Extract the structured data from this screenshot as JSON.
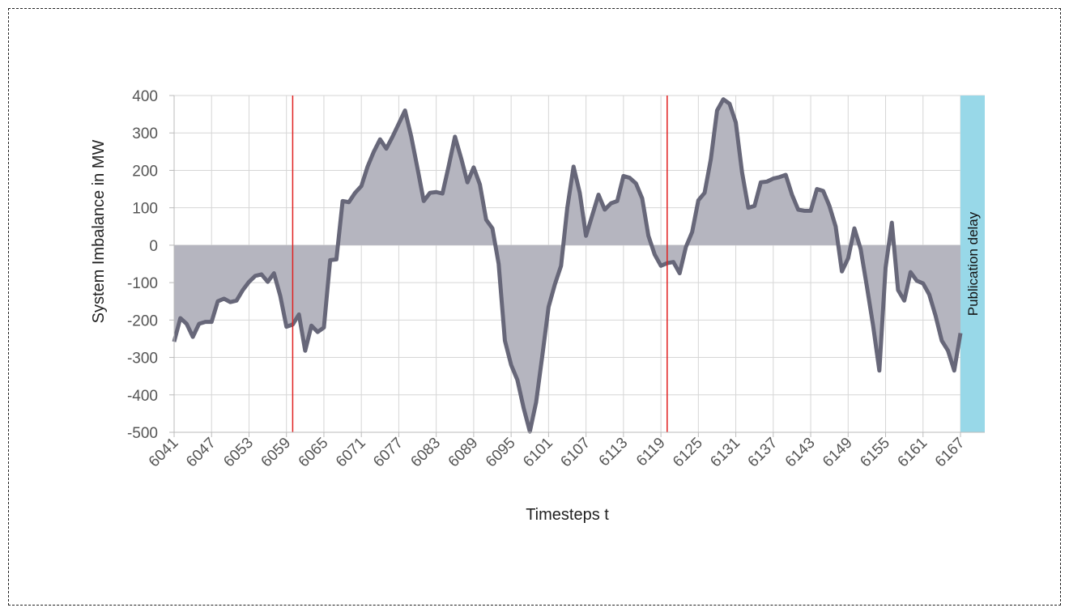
{
  "chart_data": {
    "type": "area",
    "xlabel": "Timesteps t",
    "ylabel": "System Imbalance in MW",
    "xlim": [
      6041,
      6167
    ],
    "ylim": [
      -500,
      400
    ],
    "yticks": [
      400,
      300,
      200,
      100,
      0,
      -100,
      -200,
      -300,
      -400,
      -500
    ],
    "xticks": [
      6041,
      6047,
      6053,
      6059,
      6065,
      6071,
      6077,
      6083,
      6089,
      6095,
      6101,
      6107,
      6113,
      6119,
      6125,
      6131,
      6137,
      6143,
      6149,
      6155,
      6161,
      6167
    ],
    "grid": true,
    "vlines": [
      6060,
      6120
    ],
    "band": {
      "label": "Publication delay",
      "x_start": 6167,
      "color": "#98d8e8"
    },
    "line_color": "#676779",
    "fill_color": "#b5b5bf",
    "vline_color": "#e02020",
    "x": [
      6041,
      6042,
      6043,
      6044,
      6045,
      6046,
      6047,
      6048,
      6049,
      6050,
      6051,
      6052,
      6053,
      6054,
      6055,
      6056,
      6057,
      6058,
      6059,
      6060,
      6061,
      6062,
      6063,
      6064,
      6065,
      6066,
      6067,
      6068,
      6069,
      6070,
      6071,
      6072,
      6073,
      6074,
      6075,
      6076,
      6077,
      6078,
      6079,
      6080,
      6081,
      6082,
      6083,
      6084,
      6085,
      6086,
      6087,
      6088,
      6089,
      6090,
      6091,
      6092,
      6093,
      6094,
      6095,
      6096,
      6097,
      6098,
      6099,
      6100,
      6101,
      6102,
      6103,
      6104,
      6105,
      6106,
      6107,
      6108,
      6109,
      6110,
      6111,
      6112,
      6113,
      6114,
      6115,
      6116,
      6117,
      6118,
      6119,
      6120,
      6121,
      6122,
      6123,
      6124,
      6125,
      6126,
      6127,
      6128,
      6129,
      6130,
      6131,
      6132,
      6133,
      6134,
      6135,
      6136,
      6137,
      6138,
      6139,
      6140,
      6141,
      6142,
      6143,
      6144,
      6145,
      6146,
      6147,
      6148,
      6149,
      6150,
      6151,
      6152,
      6153,
      6154,
      6155,
      6156,
      6157,
      6158,
      6159,
      6160,
      6161,
      6162,
      6163,
      6164,
      6165,
      6166,
      6167
    ],
    "values": [
      -258,
      -195,
      -210,
      -245,
      -210,
      -205,
      -205,
      -150,
      -143,
      -152,
      -148,
      -120,
      -98,
      -82,
      -78,
      -98,
      -75,
      -135,
      -218,
      -212,
      -185,
      -282,
      -215,
      -232,
      -220,
      -40,
      -38,
      118,
      115,
      140,
      158,
      210,
      250,
      283,
      258,
      290,
      325,
      360,
      290,
      205,
      118,
      140,
      142,
      138,
      212,
      290,
      232,
      168,
      208,
      162,
      68,
      45,
      -50,
      -255,
      -320,
      -360,
      -435,
      -498,
      -420,
      -295,
      -165,
      -105,
      -55,
      100,
      210,
      140,
      25,
      80,
      135,
      95,
      112,
      118,
      185,
      180,
      165,
      125,
      25,
      -25,
      -55,
      -48,
      -45,
      -75,
      -5,
      35,
      120,
      140,
      230,
      360,
      390,
      378,
      328,
      195,
      100,
      105,
      168,
      170,
      178,
      182,
      188,
      135,
      95,
      92,
      92,
      150,
      145,
      105,
      50,
      -70,
      -35,
      45,
      -10,
      -110,
      -215,
      -335,
      -60,
      60,
      -120,
      -148,
      -72,
      -95,
      -102,
      -132,
      -188,
      -255,
      -282,
      -335,
      -235
    ]
  }
}
